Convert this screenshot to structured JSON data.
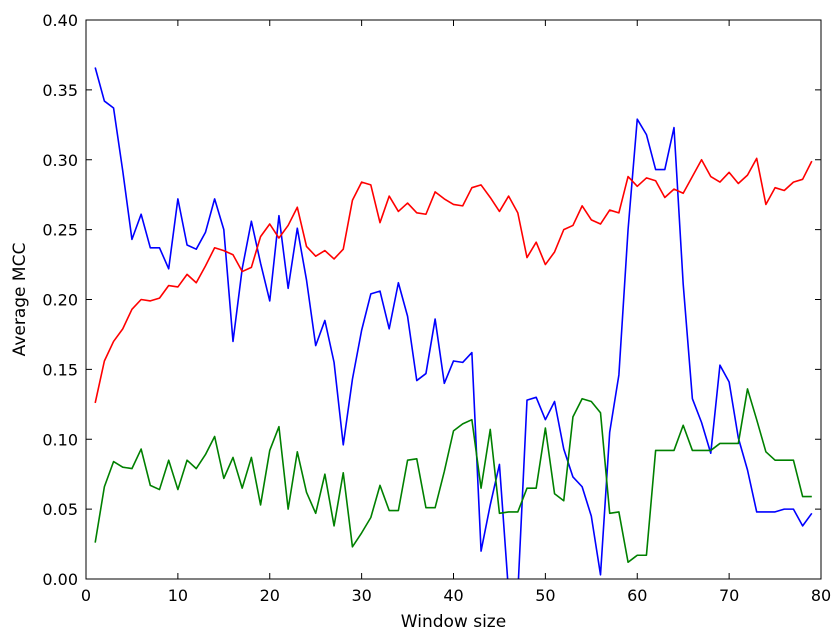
{
  "chart_data": {
    "type": "line",
    "title": "",
    "xlabel": "Window size",
    "ylabel": "Average MCC",
    "xlim": [
      0,
      80
    ],
    "ylim": [
      0.0,
      0.4
    ],
    "xticks": [
      0,
      10,
      20,
      30,
      40,
      50,
      60,
      70,
      80
    ],
    "xtick_labels": [
      "0",
      "10",
      "20",
      "30",
      "40",
      "50",
      "60",
      "70",
      "80"
    ],
    "yticks": [
      0.0,
      0.05,
      0.1,
      0.15,
      0.2,
      0.25,
      0.3,
      0.35,
      0.4
    ],
    "ytick_labels": [
      "0.00",
      "0.05",
      "0.10",
      "0.15",
      "0.20",
      "0.25",
      "0.30",
      "0.35",
      "0.40"
    ],
    "grid": false,
    "legend": "none",
    "x": [
      1,
      2,
      3,
      4,
      5,
      6,
      7,
      8,
      9,
      10,
      11,
      12,
      13,
      14,
      15,
      16,
      17,
      18,
      19,
      20,
      21,
      22,
      23,
      24,
      25,
      26,
      27,
      28,
      29,
      30,
      31,
      32,
      33,
      34,
      35,
      36,
      37,
      38,
      39,
      40,
      41,
      42,
      43,
      44,
      45,
      46,
      47,
      48,
      49,
      50,
      51,
      52,
      53,
      54,
      55,
      56,
      57,
      58,
      59,
      60,
      61,
      62,
      63,
      64,
      65,
      66,
      67,
      68,
      69,
      70,
      71,
      72,
      73,
      74,
      75,
      76,
      77,
      78,
      79
    ],
    "series": [
      {
        "color": "#0000ff",
        "values": [
          0.366,
          0.342,
          0.337,
          0.292,
          0.243,
          0.261,
          0.237,
          0.237,
          0.222,
          0.272,
          0.239,
          0.236,
          0.248,
          0.272,
          0.25,
          0.17,
          0.222,
          0.256,
          0.226,
          0.199,
          0.26,
          0.208,
          0.251,
          0.214,
          0.167,
          0.185,
          0.155,
          0.096,
          0.143,
          0.178,
          0.204,
          0.206,
          0.179,
          0.212,
          0.188,
          0.142,
          0.147,
          0.186,
          0.14,
          0.156,
          0.155,
          0.162,
          0.02,
          0.053,
          0.082,
          -0.01,
          -0.01,
          0.128,
          0.13,
          0.114,
          0.127,
          0.093,
          0.073,
          0.066,
          0.045,
          0.003,
          0.105,
          0.146,
          0.25,
          0.329,
          0.318,
          0.293,
          0.293,
          0.323,
          0.211,
          0.129,
          0.112,
          0.09,
          0.153,
          0.141,
          0.101,
          0.078,
          0.048,
          0.048,
          0.048,
          0.05,
          0.05,
          0.038,
          0.047
        ]
      },
      {
        "color": "#ff0000",
        "values": [
          0.126,
          0.156,
          0.17,
          0.179,
          0.193,
          0.2,
          0.199,
          0.201,
          0.21,
          0.209,
          0.218,
          0.212,
          0.224,
          0.237,
          0.235,
          0.232,
          0.22,
          0.223,
          0.245,
          0.254,
          0.244,
          0.253,
          0.266,
          0.238,
          0.231,
          0.235,
          0.229,
          0.236,
          0.271,
          0.284,
          0.282,
          0.255,
          0.274,
          0.263,
          0.269,
          0.262,
          0.261,
          0.277,
          0.272,
          0.268,
          0.267,
          0.28,
          0.282,
          0.273,
          0.263,
          0.274,
          0.262,
          0.23,
          0.241,
          0.225,
          0.234,
          0.25,
          0.253,
          0.267,
          0.257,
          0.254,
          0.264,
          0.262,
          0.288,
          0.281,
          0.287,
          0.285,
          0.273,
          0.279,
          0.276,
          0.288,
          0.3,
          0.288,
          0.284,
          0.291,
          0.283,
          0.289,
          0.301,
          0.268,
          0.28,
          0.278,
          0.284,
          0.286,
          0.299
        ]
      },
      {
        "color": "#008000",
        "values": [
          0.026,
          0.066,
          0.084,
          0.08,
          0.079,
          0.093,
          0.067,
          0.064,
          0.085,
          0.064,
          0.085,
          0.079,
          0.089,
          0.102,
          0.072,
          0.087,
          0.065,
          0.087,
          0.053,
          0.092,
          0.109,
          0.05,
          0.091,
          0.062,
          0.047,
          0.075,
          0.038,
          0.076,
          0.023,
          0.033,
          0.044,
          0.067,
          0.049,
          0.049,
          0.085,
          0.086,
          0.051,
          0.051,
          0.077,
          0.106,
          0.111,
          0.114,
          0.065,
          0.107,
          0.047,
          0.048,
          0.048,
          0.065,
          0.065,
          0.108,
          0.061,
          0.056,
          0.116,
          0.129,
          0.127,
          0.119,
          0.047,
          0.048,
          0.012,
          0.017,
          0.017,
          0.092,
          0.092,
          0.092,
          0.11,
          0.092,
          0.092,
          0.092,
          0.097,
          0.097,
          0.097,
          0.136,
          0.114,
          0.091,
          0.085,
          0.085,
          0.085,
          0.059,
          0.059
        ]
      }
    ]
  }
}
